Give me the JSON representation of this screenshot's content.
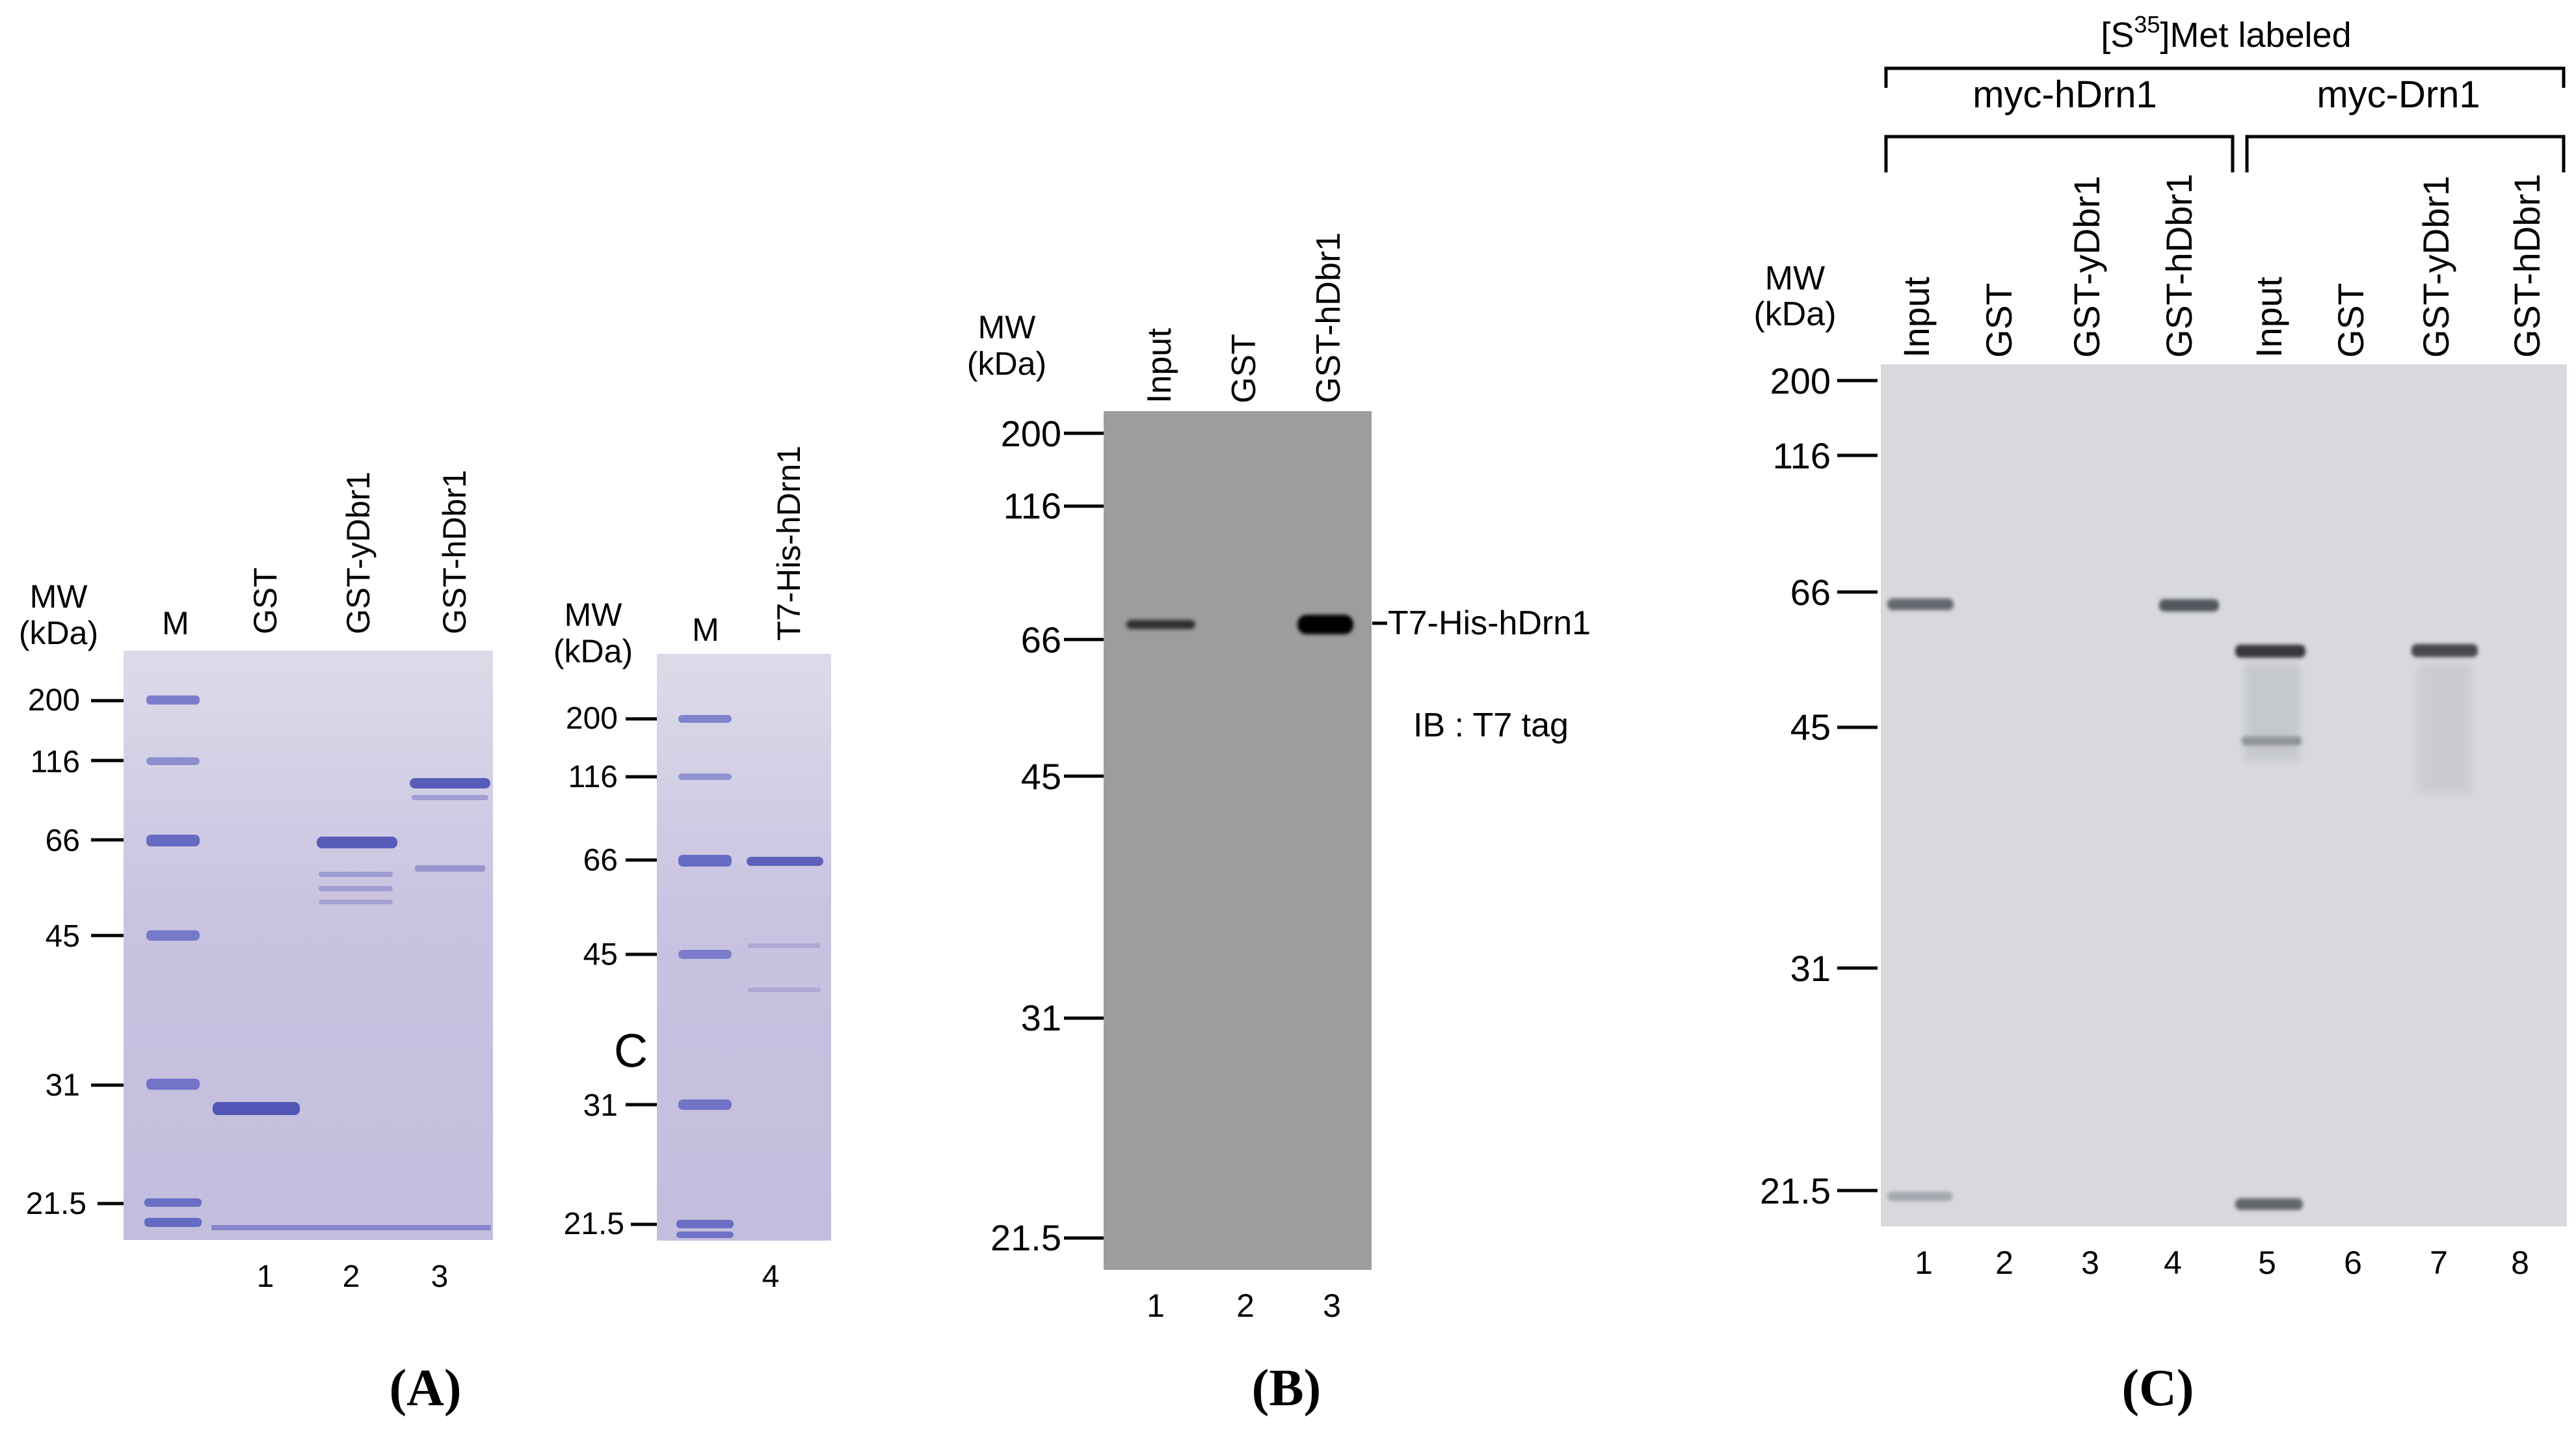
{
  "panel_a": {
    "label": "(A)",
    "mw_header_1": "MW",
    "mw_header_2": "(kDa)",
    "mw_header_right_1": "MW",
    "mw_header_right_2": "(kDa)",
    "markers": [
      "200",
      "116",
      "66",
      "45",
      "31",
      "21.5"
    ],
    "lane_headers": [
      "M",
      "GST",
      "GST-yDbr1",
      "GST-hDbr1"
    ],
    "right_lane_headers": [
      "M",
      "T7-His-hDrn1"
    ],
    "lane_numbers": [
      "1",
      "2",
      "3"
    ],
    "right_lane_numbers": [
      "4"
    ],
    "stray_letter": "C",
    "gel_color": "#c7c2de",
    "band_color": "#4a4fb3"
  },
  "panel_b": {
    "label": "(B)",
    "mw_header_1": "MW",
    "mw_header_2": "(kDa)",
    "markers": [
      "200",
      "116",
      "66",
      "45",
      "31",
      "21.5"
    ],
    "lane_headers": [
      "Input",
      "GST",
      "GST-hDbr1"
    ],
    "lane_numbers": [
      "1",
      "2",
      "3"
    ],
    "band_label": "T7-His-hDrn1",
    "antibody": "IB : T7 tag",
    "gel_color": "#9e9e9e"
  },
  "panel_c": {
    "label": "(C)",
    "mw_header_1": "MW",
    "mw_header_2": "(kDa)",
    "top_label_prefix": "[S",
    "top_label_sup": "35",
    "top_label_suffix": "]Met labeled",
    "group_labels": [
      "myc-hDrn1",
      "myc-Drn1"
    ],
    "markers": [
      "200",
      "116",
      "66",
      "45",
      "31",
      "21.5"
    ],
    "lane_headers": [
      "Input",
      "GST",
      "GST-yDbr1",
      "GST-hDbr1",
      "Input",
      "GST",
      "GST-yDbr1",
      "GST-hDbr1"
    ],
    "lane_numbers": [
      "1",
      "2",
      "3",
      "4",
      "5",
      "6",
      "7",
      "8"
    ],
    "gel_color": "#d6d8dd"
  }
}
